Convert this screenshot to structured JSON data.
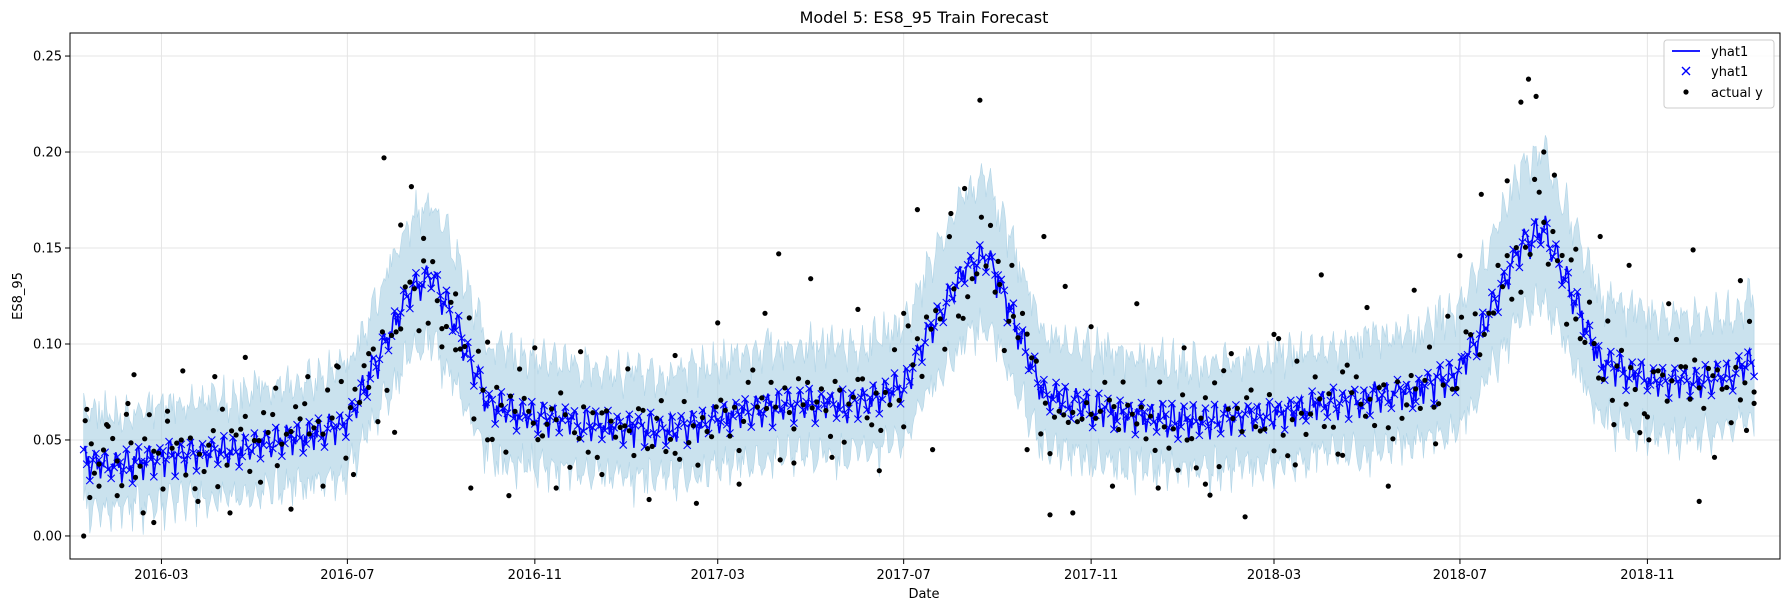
{
  "chart_data": {
    "type": "line",
    "title": "Model 5: ES8_95 Train Forecast",
    "xlabel": "Date",
    "ylabel": "ES8_95",
    "x_range": [
      "2016-01-01",
      "2019-01-27"
    ],
    "ylim": [
      -0.012,
      0.262
    ],
    "x_ticks": [
      "2016-03-01",
      "2016-07-01",
      "2016-11-01",
      "2017-03-01",
      "2017-07-01",
      "2017-11-01",
      "2018-03-01",
      "2018-07-01",
      "2018-11-01"
    ],
    "x_tick_labels": [
      "2016-03",
      "2016-07",
      "2016-11",
      "2017-03",
      "2017-07",
      "2017-11",
      "2018-03",
      "2018-07",
      "2018-11"
    ],
    "y_ticks": [
      0.0,
      0.05,
      0.1,
      0.15,
      0.2,
      0.25
    ],
    "y_tick_labels": [
      "0.00",
      "0.05",
      "0.10",
      "0.15",
      "0.20",
      "0.25"
    ],
    "grid": true,
    "legend_position": "top-right",
    "legend": [
      {
        "label": "yhat1",
        "kind": "line"
      },
      {
        "label": "yhat1",
        "kind": "x-marker"
      },
      {
        "label": "actual y",
        "kind": "dot"
      }
    ],
    "colors": {
      "forecast": "#0000ff",
      "interval": "#a6cee3",
      "actual": "#000000",
      "grid": "#e5e5e5"
    },
    "series": [
      {
        "name": "yhat1",
        "x": [
          "2016-01-10",
          "2016-02-01",
          "2016-03-01",
          "2016-04-01",
          "2016-05-01",
          "2016-06-01",
          "2016-07-01",
          "2016-07-20",
          "2016-08-10",
          "2016-08-25",
          "2016-09-10",
          "2016-10-01",
          "2016-11-01",
          "2016-12-01",
          "2017-01-01",
          "2017-02-01",
          "2017-03-01",
          "2017-04-01",
          "2017-05-01",
          "2017-06-01",
          "2017-07-01",
          "2017-07-20",
          "2017-08-10",
          "2017-08-25",
          "2017-09-10",
          "2017-10-01",
          "2017-11-01",
          "2017-12-01",
          "2018-01-01",
          "2018-02-01",
          "2018-03-01",
          "2018-04-01",
          "2018-05-01",
          "2018-06-01",
          "2018-07-01",
          "2018-07-20",
          "2018-08-10",
          "2018-08-25",
          "2018-09-10",
          "2018-10-01",
          "2018-11-01",
          "2018-12-01",
          "2019-01-01",
          "2019-01-10"
        ],
        "y": [
          0.038,
          0.036,
          0.04,
          0.043,
          0.047,
          0.05,
          0.058,
          0.09,
          0.125,
          0.135,
          0.11,
          0.068,
          0.062,
          0.058,
          0.056,
          0.055,
          0.061,
          0.066,
          0.068,
          0.068,
          0.078,
          0.108,
          0.138,
          0.145,
          0.115,
          0.073,
          0.066,
          0.062,
          0.06,
          0.06,
          0.063,
          0.068,
          0.071,
          0.074,
          0.085,
          0.115,
          0.15,
          0.16,
          0.13,
          0.09,
          0.082,
          0.079,
          0.085,
          0.092
        ]
      },
      {
        "name": "actual y",
        "points": [
          [
            "2016-01-10",
            0.0
          ],
          [
            "2016-01-12",
            0.066
          ],
          [
            "2016-01-15",
            0.048
          ],
          [
            "2016-01-20",
            0.026
          ],
          [
            "2016-01-25",
            0.058
          ],
          [
            "2016-02-01",
            0.021
          ],
          [
            "2016-02-08",
            0.069
          ],
          [
            "2016-02-12",
            0.084
          ],
          [
            "2016-02-18",
            0.012
          ],
          [
            "2016-02-25",
            0.007
          ],
          [
            "2016-03-05",
            0.065
          ],
          [
            "2016-03-15",
            0.086
          ],
          [
            "2016-03-25",
            0.018
          ],
          [
            "2016-04-05",
            0.083
          ],
          [
            "2016-04-15",
            0.012
          ],
          [
            "2016-04-25",
            0.093
          ],
          [
            "2016-05-05",
            0.028
          ],
          [
            "2016-05-15",
            0.077
          ],
          [
            "2016-05-25",
            0.014
          ],
          [
            "2016-06-05",
            0.083
          ],
          [
            "2016-06-15",
            0.026
          ],
          [
            "2016-06-25",
            0.088
          ],
          [
            "2016-07-05",
            0.032
          ],
          [
            "2016-07-15",
            0.095
          ],
          [
            "2016-07-25",
            0.197
          ],
          [
            "2016-08-01",
            0.054
          ],
          [
            "2016-08-05",
            0.162
          ],
          [
            "2016-08-12",
            0.182
          ],
          [
            "2016-08-20",
            0.155
          ],
          [
            "2016-09-01",
            0.108
          ],
          [
            "2016-09-10",
            0.097
          ],
          [
            "2016-09-20",
            0.025
          ],
          [
            "2016-10-01",
            0.101
          ],
          [
            "2016-10-15",
            0.021
          ],
          [
            "2016-11-01",
            0.098
          ],
          [
            "2016-11-15",
            0.025
          ],
          [
            "2016-12-01",
            0.096
          ],
          [
            "2016-12-15",
            0.032
          ],
          [
            "2017-01-01",
            0.087
          ],
          [
            "2017-01-15",
            0.019
          ],
          [
            "2017-02-01",
            0.094
          ],
          [
            "2017-02-15",
            0.017
          ],
          [
            "2017-03-01",
            0.111
          ],
          [
            "2017-03-15",
            0.027
          ],
          [
            "2017-04-01",
            0.116
          ],
          [
            "2017-04-10",
            0.147
          ],
          [
            "2017-04-20",
            0.038
          ],
          [
            "2017-05-01",
            0.134
          ],
          [
            "2017-05-15",
            0.041
          ],
          [
            "2017-06-01",
            0.118
          ],
          [
            "2017-06-15",
            0.034
          ],
          [
            "2017-07-01",
            0.116
          ],
          [
            "2017-07-10",
            0.17
          ],
          [
            "2017-07-20",
            0.045
          ],
          [
            "2017-08-01",
            0.168
          ],
          [
            "2017-08-10",
            0.181
          ],
          [
            "2017-08-20",
            0.227
          ],
          [
            "2017-09-01",
            0.143
          ],
          [
            "2017-09-10",
            0.141
          ],
          [
            "2017-09-20",
            0.045
          ],
          [
            "2017-10-01",
            0.156
          ],
          [
            "2017-10-05",
            0.011
          ],
          [
            "2017-10-15",
            0.13
          ],
          [
            "2017-10-20",
            0.012
          ],
          [
            "2017-11-01",
            0.109
          ],
          [
            "2017-11-15",
            0.026
          ],
          [
            "2017-12-01",
            0.121
          ],
          [
            "2017-12-15",
            0.025
          ],
          [
            "2018-01-01",
            0.098
          ],
          [
            "2018-01-15",
            0.027
          ],
          [
            "2018-02-01",
            0.095
          ],
          [
            "2018-02-10",
            0.01
          ],
          [
            "2018-03-01",
            0.105
          ],
          [
            "2018-03-15",
            0.037
          ],
          [
            "2018-04-01",
            0.136
          ],
          [
            "2018-04-15",
            0.042
          ],
          [
            "2018-05-01",
            0.119
          ],
          [
            "2018-05-15",
            0.026
          ],
          [
            "2018-06-01",
            0.128
          ],
          [
            "2018-06-15",
            0.048
          ],
          [
            "2018-07-01",
            0.146
          ],
          [
            "2018-07-15",
            0.178
          ],
          [
            "2018-08-01",
            0.185
          ],
          [
            "2018-08-10",
            0.226
          ],
          [
            "2018-08-15",
            0.238
          ],
          [
            "2018-08-20",
            0.229
          ],
          [
            "2018-08-25",
            0.2
          ],
          [
            "2018-09-01",
            0.188
          ],
          [
            "2018-09-15",
            0.113
          ],
          [
            "2018-10-01",
            0.156
          ],
          [
            "2018-10-10",
            0.058
          ],
          [
            "2018-10-20",
            0.141
          ],
          [
            "2018-11-01",
            0.062
          ],
          [
            "2018-11-15",
            0.121
          ],
          [
            "2018-12-01",
            0.149
          ],
          [
            "2018-12-05",
            0.018
          ],
          [
            "2018-12-15",
            0.041
          ],
          [
            "2019-01-01",
            0.133
          ],
          [
            "2019-01-05",
            0.055
          ],
          [
            "2019-01-10",
            0.075
          ]
        ]
      }
    ]
  }
}
